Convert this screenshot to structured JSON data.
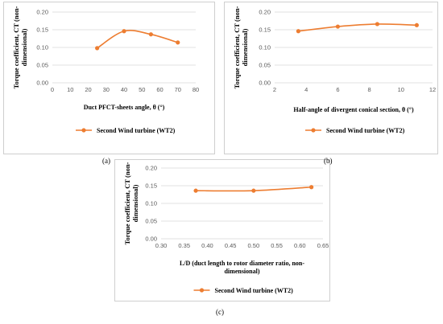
{
  "figure": {
    "captions": [
      "(a)",
      "(b)",
      "(c)"
    ]
  },
  "series_color": "#ED7D31",
  "chart_data": [
    {
      "type": "line",
      "panel": "a",
      "ylabel_line1": "Torque coefficient, CT (non-",
      "ylabel_line2": "dimensional)",
      "xlabel_lines": [
        "Duct PFCT-sheets angle, θ (°)"
      ],
      "xlim": [
        0,
        80
      ],
      "ylim": [
        0,
        0.2
      ],
      "xticks": [
        "0",
        "10",
        "20",
        "30",
        "40",
        "50",
        "60",
        "70",
        "80"
      ],
      "yticks": [
        "0.00",
        "0.05",
        "0.10",
        "0.15",
        "0.20"
      ],
      "legend_position": "bottom",
      "grid": true,
      "series": [
        {
          "name": "Second Wind turbine (WT2)",
          "x": [
            25,
            40,
            55,
            70
          ],
          "y": [
            0.098,
            0.146,
            0.137,
            0.114
          ]
        }
      ]
    },
    {
      "type": "line",
      "panel": "b",
      "ylabel_line1": "Torque coefficient, CT (non-",
      "ylabel_line2": "dimensional)",
      "xlabel_lines": [
        "Half-angle of divergent conical section, θ (°)"
      ],
      "xlim": [
        2,
        12
      ],
      "ylim": [
        0,
        0.2
      ],
      "xticks": [
        "2",
        "4",
        "6",
        "8",
        "10",
        "12"
      ],
      "yticks": [
        "0.00",
        "0.05",
        "0.10",
        "0.15",
        "0.20"
      ],
      "legend_position": "bottom",
      "grid": true,
      "series": [
        {
          "name": "Second Wind turbine (WT2)",
          "x": [
            3.5,
            6,
            8.5,
            11
          ],
          "y": [
            0.146,
            0.159,
            0.166,
            0.163
          ]
        }
      ]
    },
    {
      "type": "line",
      "panel": "c",
      "ylabel_line1": "Torque coefficient, CT (non-",
      "ylabel_line2": "dimensional)",
      "xlabel_lines": [
        "L/D (duct length to rotor diameter ratio, non-",
        "dimensional)"
      ],
      "xlim": [
        0.3,
        0.65
      ],
      "ylim": [
        0,
        0.2
      ],
      "xticks": [
        "0.30",
        "0.35",
        "0.40",
        "0.45",
        "0.50",
        "0.55",
        "0.60",
        "0.65"
      ],
      "yticks": [
        "0.00",
        "0.05",
        "0.10",
        "0.15",
        "0.20"
      ],
      "legend_position": "bottom",
      "grid": true,
      "series": [
        {
          "name": "Second Wind turbine (WT2)",
          "x": [
            0.375,
            0.5,
            0.625
          ],
          "y": [
            0.136,
            0.136,
            0.146
          ]
        }
      ]
    }
  ]
}
